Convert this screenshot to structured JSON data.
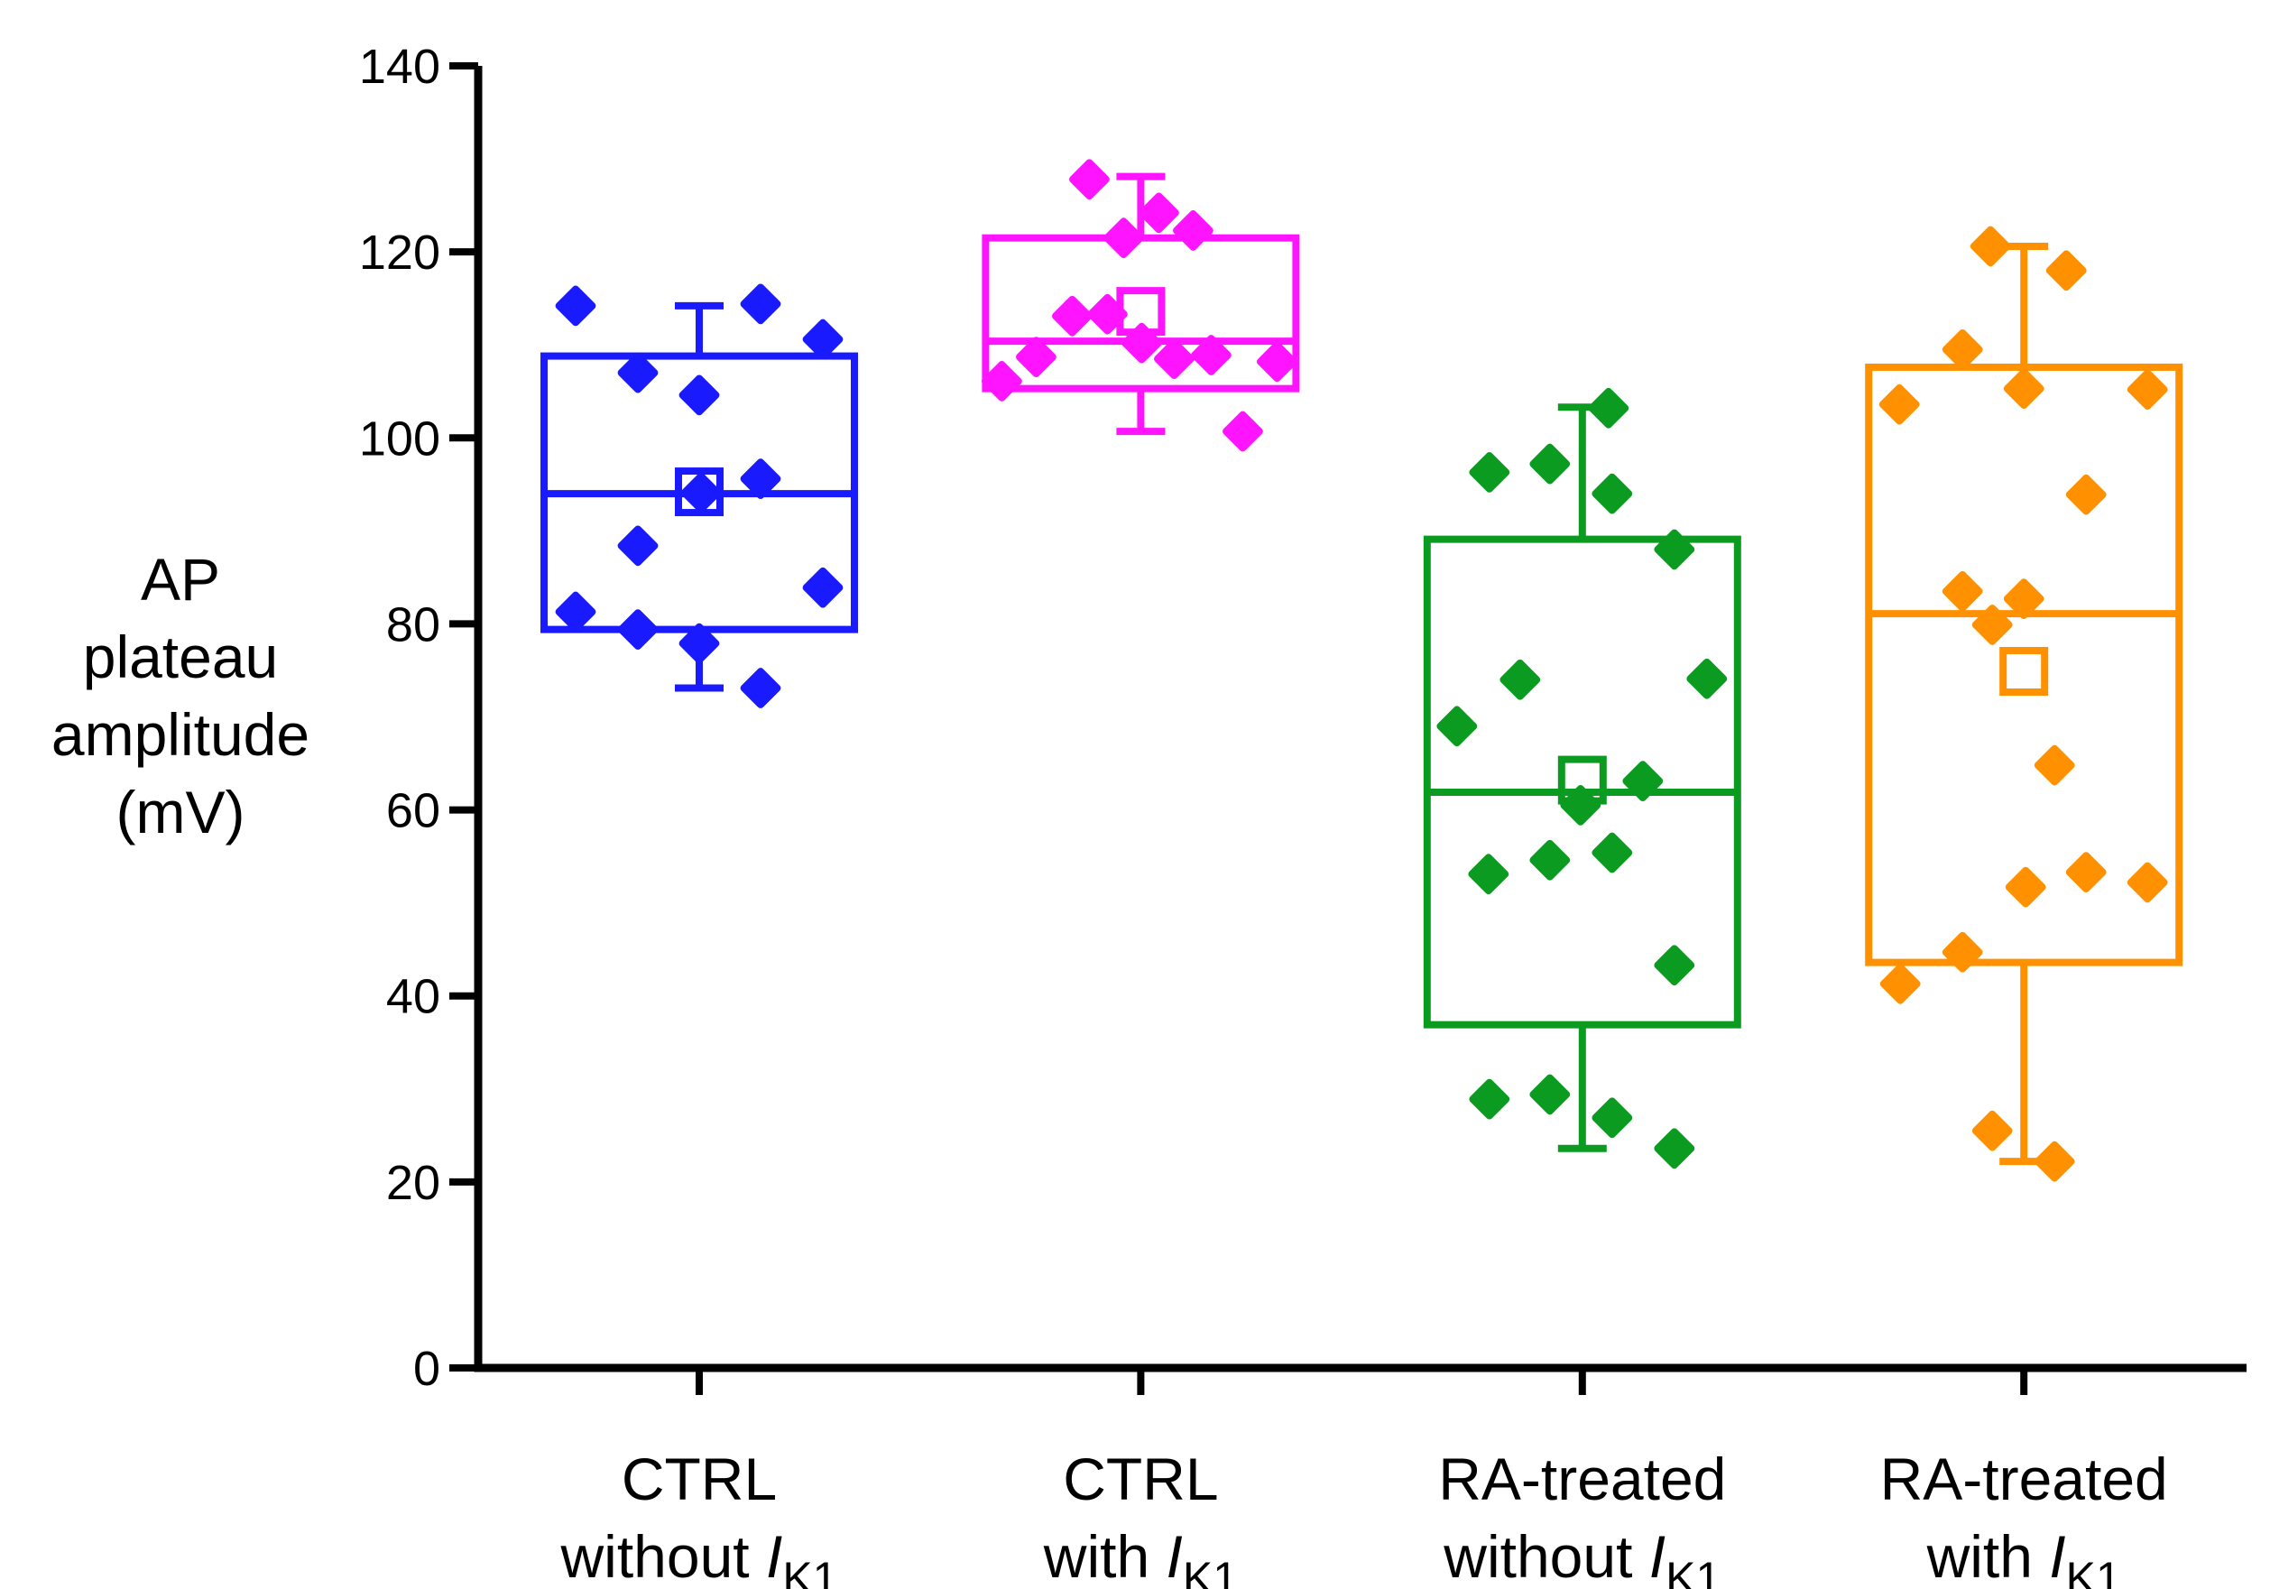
{
  "chart_data": {
    "type": "box_scatter",
    "title": "",
    "ylabel_lines": [
      "AP",
      "plateau",
      "amplitude",
      "(mV)"
    ],
    "y_axis": {
      "min": 0,
      "max": 140,
      "tick_step": 20,
      "ticks": [
        0,
        20,
        40,
        60,
        80,
        100,
        120,
        140
      ]
    },
    "axis_color": "#000000",
    "legend": "none",
    "grid": false,
    "marker_shape": "diamond",
    "mean_marker_shape": "open-square",
    "groups": [
      {
        "id": "ctrl-without-ik1",
        "label_line1": "CTRL",
        "label_line2_prefix": "without ",
        "label_symbol": "I",
        "label_symbol_sub": "K1",
        "color": "#1A1AFF",
        "box": {
          "q1": 79.4,
          "median": 94.0,
          "q3": 108.8,
          "whisker_low": 73.1,
          "whisker_high": 114.2,
          "mean": 94.2
        },
        "points": [
          [
            114.2,
            -137
          ],
          [
            114.4,
            68
          ],
          [
            110.6,
            137
          ],
          [
            107.0,
            -68
          ],
          [
            104.6,
            0
          ],
          [
            95.6,
            68
          ],
          [
            94.1,
            2
          ],
          [
            88.4,
            -68
          ],
          [
            83.9,
            137
          ],
          [
            81.3,
            -137
          ],
          [
            79.4,
            -68
          ],
          [
            77.9,
            0
          ],
          [
            73.1,
            68
          ]
        ]
      },
      {
        "id": "ctrl-with-ik1",
        "label_line1": "CTRL",
        "label_line2_prefix": "with ",
        "label_symbol": "I",
        "label_symbol_sub": "K1",
        "color": "#FF14FF",
        "box": {
          "q1": 105.3,
          "median": 110.4,
          "q3": 121.5,
          "whisker_low": 100.7,
          "whisker_high": 128.1,
          "mean": 113.6
        },
        "points": [
          [
            127.8,
            -57
          ],
          [
            124.2,
            20
          ],
          [
            122.3,
            58
          ],
          [
            121.5,
            -19
          ],
          [
            113.3,
            -37
          ],
          [
            113.1,
            -76
          ],
          [
            110.2,
            1
          ],
          [
            108.9,
            78
          ],
          [
            108.7,
            -116
          ],
          [
            108.5,
            37
          ],
          [
            108.2,
            151
          ],
          [
            106.1,
            -154
          ],
          [
            100.7,
            113
          ]
        ]
      },
      {
        "id": "ra-treated-without-ik1",
        "label_line1": "RA-treated",
        "label_line2_prefix": "without ",
        "label_symbol": "I",
        "label_symbol_sub": "K1",
        "color": "#0B9B20",
        "box": {
          "q1": 36.9,
          "median": 61.9,
          "q3": 89.1,
          "whisker_low": 23.6,
          "whisker_high": 103.3,
          "mean": 63.2
        },
        "points": [
          [
            103.2,
            29
          ],
          [
            97.2,
            -36
          ],
          [
            96.3,
            -103
          ],
          [
            94.0,
            33
          ],
          [
            88.0,
            102
          ],
          [
            74.1,
            138
          ],
          [
            74.0,
            -69
          ],
          [
            69.0,
            -139
          ],
          [
            63.1,
            67
          ],
          [
            60.5,
            -2
          ],
          [
            55.4,
            33
          ],
          [
            54.6,
            -36
          ],
          [
            53.1,
            -104
          ],
          [
            43.3,
            102
          ],
          [
            29.4,
            -36
          ],
          [
            28.9,
            -103
          ],
          [
            26.9,
            33
          ],
          [
            23.6,
            102
          ]
        ]
      },
      {
        "id": "ra-treated-with-ik1",
        "label_line1": "RA-treated",
        "label_line2_prefix": "with ",
        "label_symbol": "I",
        "label_symbol_sub": "K1",
        "color": "#FF9100",
        "box": {
          "q1": 43.6,
          "median": 81.1,
          "q3": 107.6,
          "whisker_low": 22.2,
          "whisker_high": 120.6,
          "mean": 74.9
        },
        "points": [
          [
            120.6,
            -37
          ],
          [
            118.0,
            47
          ],
          [
            109.5,
            -68
          ],
          [
            105.3,
            0
          ],
          [
            105.2,
            137
          ],
          [
            103.6,
            -138
          ],
          [
            93.9,
            69
          ],
          [
            83.5,
            -68
          ],
          [
            82.7,
            0
          ],
          [
            79.9,
            -35
          ],
          [
            64.8,
            34
          ],
          [
            53.3,
            69
          ],
          [
            52.2,
            137
          ],
          [
            51.7,
            2
          ],
          [
            44.7,
            -68
          ],
          [
            41.3,
            -137
          ],
          [
            25.5,
            -35
          ],
          [
            22.2,
            34
          ]
        ]
      }
    ]
  }
}
